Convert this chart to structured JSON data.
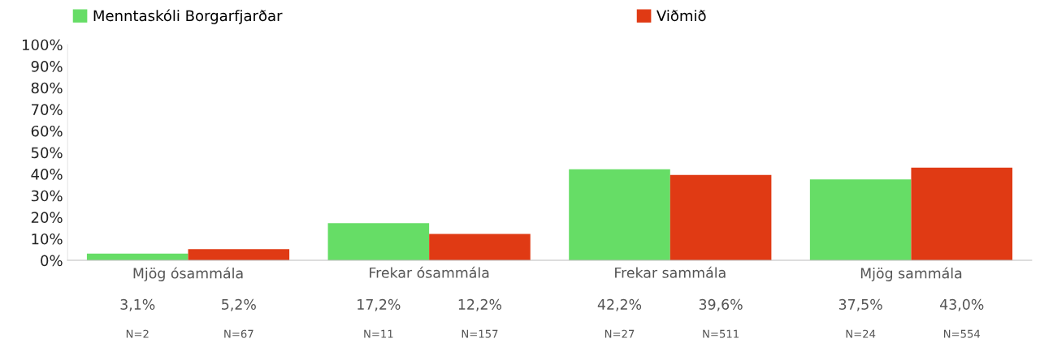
{
  "chart_data": {
    "type": "bar",
    "categories": [
      "Mjög ósammála",
      "Frekar ósammála",
      "Frekar sammála",
      "Mjög sammála"
    ],
    "series": [
      {
        "name": "Menntaskóli Borgarfjarðar",
        "color": "#66dd66",
        "values": [
          3.1,
          17.2,
          42.2,
          37.5
        ],
        "value_labels": [
          "3,1%",
          "17,2%",
          "42,2%",
          "37,5%"
        ]
      },
      {
        "name": "Viðmið",
        "color": "#e03a14",
        "values": [
          5.2,
          12.2,
          39.6,
          43.0
        ],
        "value_labels": [
          "5,2%",
          "12,2%",
          "39,6%",
          "43,0%"
        ]
      }
    ],
    "ylim": [
      0,
      100
    ],
    "yticks": [
      {
        "value": 0,
        "label": "0%"
      },
      {
        "value": 10,
        "label": "10%"
      },
      {
        "value": 20,
        "label": "20%"
      },
      {
        "value": 30,
        "label": "30%"
      },
      {
        "value": 40,
        "label": "40%"
      },
      {
        "value": 50,
        "label": "50%"
      },
      {
        "value": 60,
        "label": "60%"
      },
      {
        "value": 70,
        "label": "70%"
      },
      {
        "value": 80,
        "label": "80%"
      },
      {
        "value": 90,
        "label": "90%"
      },
      {
        "value": 100,
        "label": "100%"
      }
    ],
    "annotations": [
      "N=2",
      "N=67",
      "N=11",
      "N=157",
      "N=27",
      "N=511",
      "N=24",
      "N=554"
    ],
    "grid": false,
    "legend": "top"
  }
}
